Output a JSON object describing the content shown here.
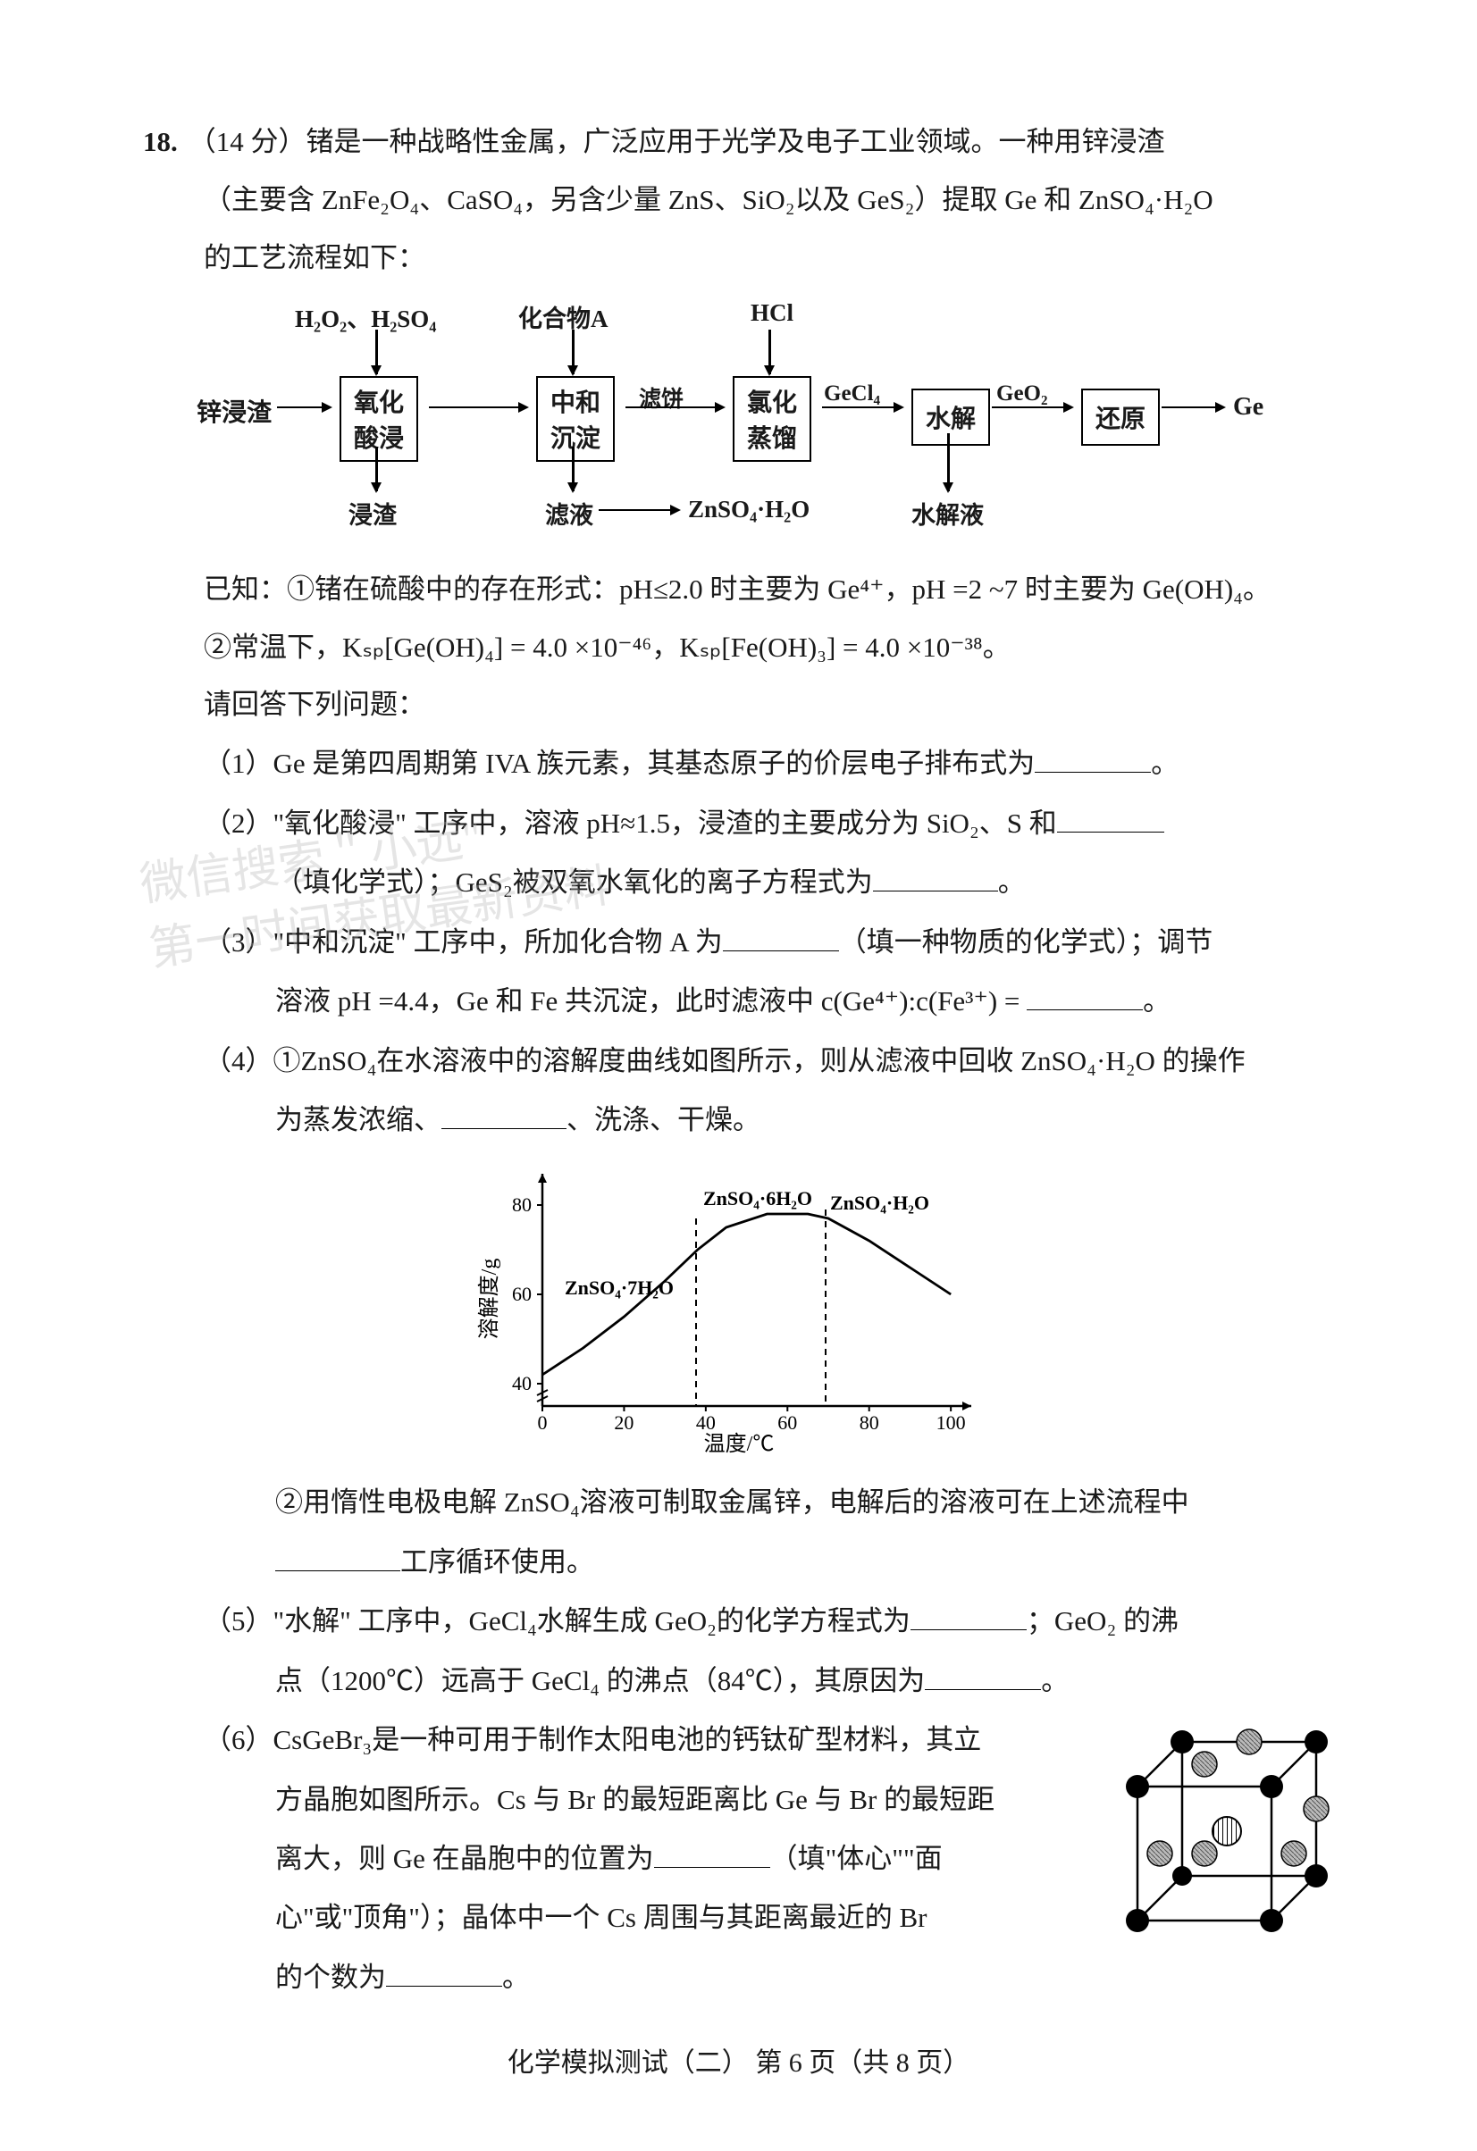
{
  "question": {
    "number": "18.",
    "points": "（14 分）",
    "intro_line1": "锗是一种战略性金属，广泛应用于光学及电子工业领域。一种用锌浸渣",
    "intro_line2": "（主要含 ZnFe₂O₄、CaSO₄，另含少量 ZnS、SiO₂以及 GeS₂）提取 Ge 和 ZnSO₄·H₂O",
    "intro_line3": "的工艺流程如下："
  },
  "flowchart": {
    "top_labels": {
      "h2o2_h2so4": "H₂O₂、H₂SO₄",
      "compound_a": "化合物A",
      "hcl": "HCl"
    },
    "nodes": {
      "start": "锌浸渣",
      "box1": "氧化\n酸浸",
      "box2": "中和\n沉淀",
      "box3": "氯化\n蒸馏",
      "box4": "水解",
      "box5": "还原",
      "end": "Ge"
    },
    "mid_labels": {
      "filter_cake": "滤饼",
      "gecl4": "GeCl₄",
      "geo2": "GeO₂"
    },
    "bottom_labels": {
      "residue": "浸渣",
      "filtrate": "滤液",
      "znso4_h2o": "ZnSO₄·H₂O",
      "hydrolysis_liquid": "水解液"
    }
  },
  "known": {
    "line1_pre": "已知：①锗在硫酸中的存在形式：pH≤2.0 时主要为 Ge⁴⁺，pH =2 ~7 时主要为 Ge(OH)₄。",
    "line2": "②常温下，Kₛₚ[Ge(OH)₄] = 4.0 ×10⁻⁴⁶，Kₛₚ[Fe(OH)₃] = 4.0 ×10⁻³⁸。"
  },
  "prompt": "请回答下列问题：",
  "parts": {
    "p1": "（1）Ge 是第四周期第 IVA 族元素，其基态原子的价层电子排布式为",
    "p1_end": "。",
    "p2_l1_a": "（2）\"氧化酸浸\" 工序中，溶液 pH≈1.5，浸渣的主要成分为 SiO₂、S 和",
    "p2_l2_a": "（填化学式）；GeS₂被双氧水氧化的离子方程式为",
    "p2_l2_end": "。",
    "p3_l1_a": "（3）\"中和沉淀\" 工序中，所加化合物 A 为",
    "p3_l1_b": "（填一种物质的化学式）；调节",
    "p3_l2_a": "溶液 pH =4.4，Ge 和 Fe 共沉淀，此时滤液中 c(Ge⁴⁺):c(Fe³⁺) = ",
    "p3_l2_end": "。",
    "p4_l1": "（4）①ZnSO₄在水溶液中的溶解度曲线如图所示，则从滤液中回收 ZnSO₄·H₂O 的操作",
    "p4_l2_a": "为蒸发浓缩、",
    "p4_l2_b": "、洗涤、干燥。",
    "p4_2_l1": "②用惰性电极电解 ZnSO₄溶液可制取金属锌，电解后的溶液可在上述流程中",
    "p4_2_l2": "工序循环使用。",
    "p5_l1_a": "（5）\"水解\" 工序中，GeCl₄水解生成 GeO₂的化学方程式为",
    "p5_l1_b": "；GeO₂ 的沸",
    "p5_l2_a": "点（1200℃）远高于 GeCl₄ 的沸点（84℃），其原因为",
    "p5_l2_end": "。",
    "p6_l1": "（6）CsGeBr₃是一种可用于制作太阳电池的钙钛矿型材料，其立",
    "p6_l2": "方晶胞如图所示。Cs 与 Br 的最短距离比 Ge 与 Br 的最短距",
    "p6_l3_a": "离大，则 Ge 在晶胞中的位置为",
    "p6_l3_b": "（填\"体心\"\"面",
    "p6_l4": "心\"或\"顶角\"）；晶体中一个 Cs 周围与其距离最近的 Br",
    "p6_l5_a": "的个数为",
    "p6_l5_end": "。"
  },
  "chart": {
    "type": "line",
    "x_label": "温度/℃",
    "y_label": "溶解度/g",
    "x_ticks": [
      0,
      20,
      40,
      60,
      80,
      100
    ],
    "y_ticks": [
      40,
      60,
      80
    ],
    "xlim": [
      0,
      105
    ],
    "ylim": [
      35,
      85
    ],
    "curve_points": [
      {
        "x": 0,
        "y": 42
      },
      {
        "x": 10,
        "y": 48
      },
      {
        "x": 20,
        "y": 55
      },
      {
        "x": 30,
        "y": 63
      },
      {
        "x": 38,
        "y": 70
      },
      {
        "x": 45,
        "y": 75
      },
      {
        "x": 55,
        "y": 78
      },
      {
        "x": 65,
        "y": 78
      },
      {
        "x": 70,
        "y": 77
      },
      {
        "x": 80,
        "y": 72
      },
      {
        "x": 90,
        "y": 66
      },
      {
        "x": 100,
        "y": 60
      }
    ],
    "vlines": [
      38,
      70
    ],
    "annotations": {
      "znso4_7h2o": "ZnSO₄·7H₂O",
      "znso4_6h2o": "ZnSO₄·6H₂O",
      "znso4_h2o": "ZnSO₄·H₂O"
    },
    "axis_color": "#000000",
    "line_color": "#000000",
    "background": "#ffffff",
    "line_width": 2.5,
    "font_size": 22
  },
  "crystal": {
    "description": "cubic unit cell",
    "corner_atom": "solid-black-sphere",
    "face_atom": "grey-hatched-sphere",
    "body_atom": "striped-sphere"
  },
  "footer": "化学模拟测试（二）    第 6 页（共 8 页）",
  "watermark": {
    "line1": "微信搜索＂小远\"",
    "line2": "第一时间获取最新资料"
  },
  "colors": {
    "text": "#1a1a1a",
    "background": "#ffffff",
    "watermark": "rgba(180,180,180,0.35)"
  }
}
